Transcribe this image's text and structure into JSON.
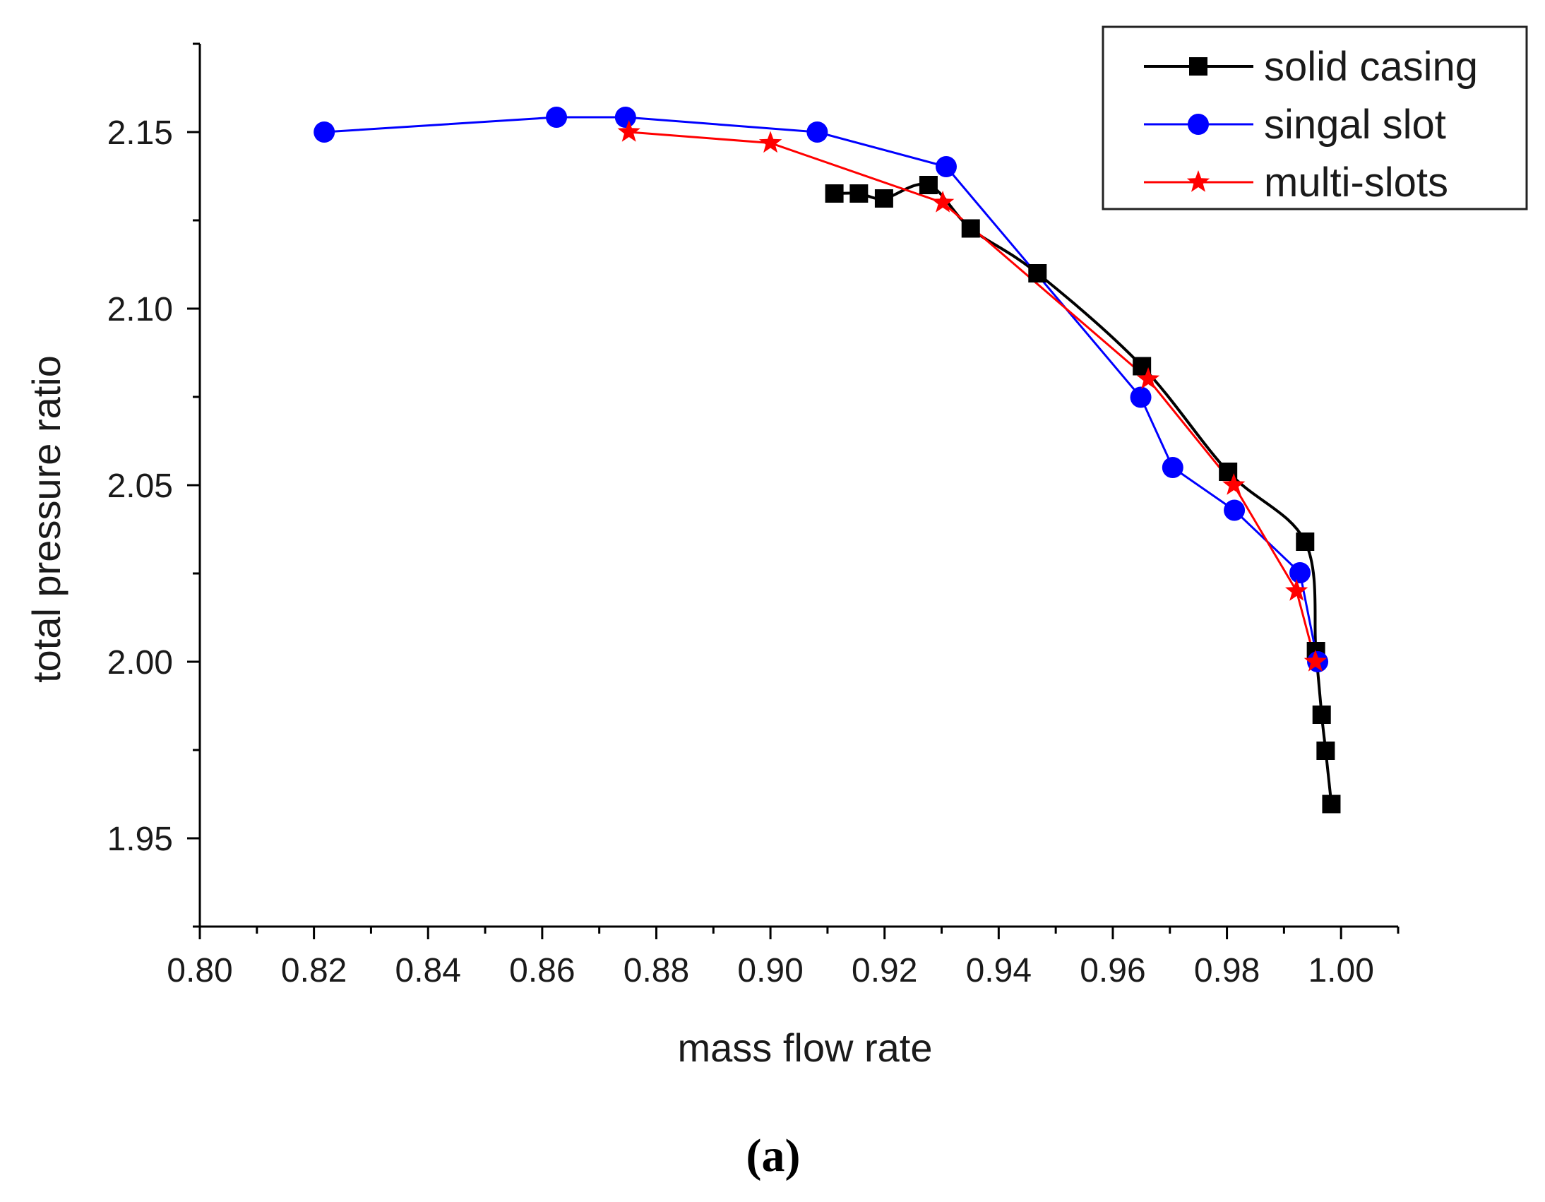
{
  "caption": "(a)",
  "chart_data": {
    "type": "line",
    "title": "",
    "xlabel": "mass flow rate",
    "ylabel": "total pressure ratio",
    "xlim": [
      0.8,
      1.01
    ],
    "ylim": [
      1.925,
      2.175
    ],
    "x_ticks": [
      0.8,
      0.82,
      0.84,
      0.86,
      0.88,
      0.9,
      0.92,
      0.94,
      0.96,
      0.98,
      1.0
    ],
    "x_tick_labels": [
      "0.80",
      "0.82",
      "0.84",
      "0.86",
      "0.88",
      "0.90",
      "0.92",
      "0.94",
      "0.96",
      "0.98",
      "1.00"
    ],
    "y_ticks": [
      1.95,
      2.0,
      2.05,
      2.1,
      2.15
    ],
    "y_tick_labels": [
      "1.95",
      "2.00",
      "2.05",
      "2.10",
      "2.15"
    ],
    "legend_position": "top-right",
    "series": [
      {
        "name": "solid casing",
        "color": "#000000",
        "marker": "square",
        "line": "smooth",
        "x": [
          0.9112,
          0.9155,
          0.9199,
          0.9277,
          0.9351,
          0.9468,
          0.9651,
          0.9802,
          0.9937,
          0.9956,
          0.9966,
          0.9973,
          0.9983
        ],
        "y": [
          2.1326,
          2.1326,
          2.1312,
          2.135,
          2.1227,
          2.11,
          2.0837,
          2.0538,
          2.034,
          2.003,
          1.985,
          1.9748,
          1.9597
        ]
      },
      {
        "name": "singal slot",
        "color": "#0000ff",
        "marker": "circle",
        "line": "straight",
        "x": [
          0.8218,
          0.8625,
          0.8746,
          0.9082,
          0.9308,
          0.9649,
          0.9705,
          0.9813,
          0.9928,
          0.9959
        ],
        "y": [
          2.15,
          2.1542,
          2.1542,
          2.15,
          2.1402,
          2.0749,
          2.055,
          2.0429,
          2.0252,
          2.0
        ]
      },
      {
        "name": "multi-slots",
        "color": "#ff0000",
        "marker": "star",
        "line": "straight",
        "x": [
          0.8752,
          0.9,
          0.9302,
          0.9662,
          0.9812,
          0.9922,
          0.9955
        ],
        "y": [
          2.15,
          2.1469,
          2.13,
          2.08,
          2.05,
          2.02,
          2.0
        ]
      }
    ]
  }
}
